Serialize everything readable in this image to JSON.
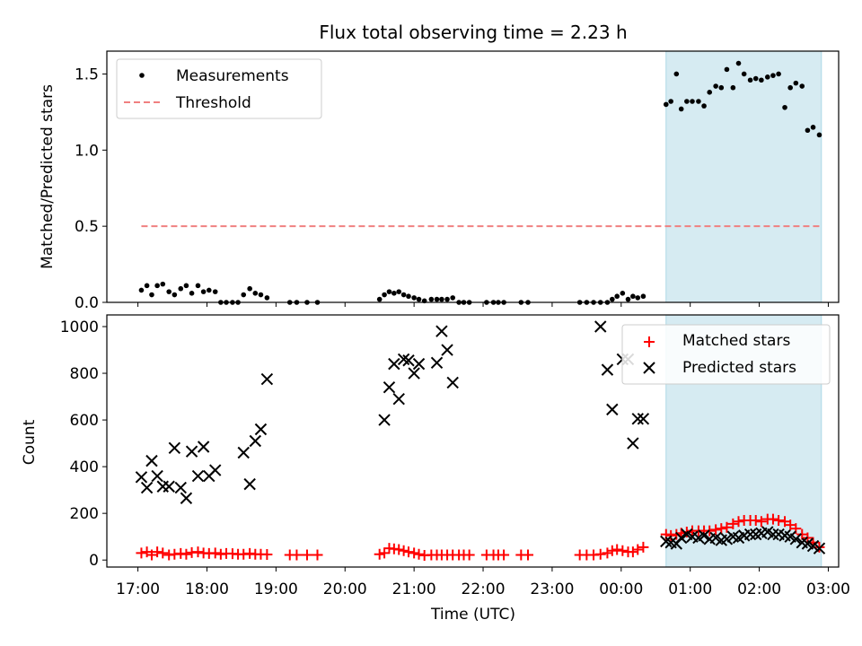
{
  "chart_data": [
    {
      "type": "scatter",
      "title": "Flux total observing time = 2.23 h",
      "xlabel": "",
      "ylabel": "Matched/Predicted stars",
      "ylim": [
        0,
        1.65
      ],
      "xlim": [
        16.55,
        27.15
      ],
      "yticks": [
        0.0,
        0.5,
        1.0,
        1.5
      ],
      "ytick_labels": [
        "0.0",
        "0.5",
        "1.0",
        "1.5"
      ],
      "legend": {
        "placement": "top-left",
        "entries": [
          "Measurements",
          "Threshold"
        ]
      },
      "threshold": {
        "name": "Threshold",
        "value": 0.5,
        "x_start": 17.05,
        "x_end": 26.9,
        "color": "#f08080"
      },
      "shaded_region": {
        "x_start": 24.65,
        "x_end": 26.9,
        "color": "#add8e6"
      },
      "series": [
        {
          "name": "Measurements",
          "color": "#000000",
          "x": [
            17.05,
            17.13,
            17.2,
            17.28,
            17.36,
            17.45,
            17.53,
            17.62,
            17.7,
            17.78,
            17.87,
            17.95,
            18.03,
            18.12,
            18.2,
            18.28,
            18.37,
            18.45,
            18.53,
            18.62,
            18.7,
            18.78,
            18.87,
            19.2,
            19.3,
            19.45,
            19.6,
            20.5,
            20.57,
            20.64,
            20.71,
            20.78,
            20.85,
            20.92,
            21.0,
            21.07,
            21.15,
            21.25,
            21.33,
            21.4,
            21.48,
            21.56,
            21.65,
            21.72,
            21.8,
            22.05,
            22.15,
            22.22,
            22.3,
            22.55,
            22.65,
            23.4,
            23.5,
            23.6,
            23.7,
            23.8,
            23.87,
            23.94,
            24.02,
            24.1,
            24.17,
            24.24,
            24.32,
            24.65,
            24.72,
            24.8,
            24.87,
            24.95,
            25.03,
            25.12,
            25.2,
            25.28,
            25.37,
            25.45,
            25.53,
            25.62,
            25.7,
            25.78,
            25.87,
            25.95,
            26.03,
            26.12,
            26.2,
            26.28,
            26.37,
            26.45,
            26.53,
            26.62,
            26.7,
            26.78,
            26.87
          ],
          "y": [
            0.08,
            0.11,
            0.05,
            0.11,
            0.12,
            0.07,
            0.05,
            0.09,
            0.11,
            0.06,
            0.11,
            0.07,
            0.08,
            0.07,
            0.0,
            0.0,
            0.0,
            0.0,
            0.05,
            0.09,
            0.06,
            0.05,
            0.03,
            0.0,
            0.0,
            0.0,
            0.0,
            0.02,
            0.05,
            0.07,
            0.06,
            0.07,
            0.05,
            0.04,
            0.03,
            0.02,
            0.01,
            0.02,
            0.02,
            0.02,
            0.02,
            0.03,
            0.0,
            0.0,
            0.0,
            0.0,
            0.0,
            0.0,
            0.0,
            0.0,
            0.0,
            0.0,
            0.0,
            0.0,
            0.0,
            0.0,
            0.02,
            0.04,
            0.06,
            0.02,
            0.04,
            0.03,
            0.04,
            1.3,
            1.32,
            1.5,
            1.27,
            1.32,
            1.32,
            1.32,
            1.29,
            1.38,
            1.42,
            1.41,
            1.53,
            1.41,
            1.57,
            1.5,
            1.46,
            1.47,
            1.46,
            1.48,
            1.49,
            1.5,
            1.28,
            1.41,
            1.44,
            1.42,
            1.13,
            1.15,
            1.1
          ]
        }
      ]
    },
    {
      "type": "scatter",
      "title": "",
      "xlabel": "Time (UTC)",
      "ylabel": "Count",
      "ylim": [
        -30,
        1050
      ],
      "xlim": [
        16.55,
        27.15
      ],
      "yticks": [
        0,
        200,
        400,
        600,
        800,
        1000
      ],
      "ytick_labels": [
        "0",
        "200",
        "400",
        "600",
        "800",
        "1000"
      ],
      "xticks": [
        17,
        18,
        19,
        20,
        21,
        22,
        23,
        24,
        25,
        26,
        27
      ],
      "xtick_labels": [
        "17:00",
        "18:00",
        "19:00",
        "20:00",
        "21:00",
        "22:00",
        "23:00",
        "00:00",
        "01:00",
        "02:00",
        "03:00"
      ],
      "legend": {
        "placement": "top-right",
        "entries": [
          "Matched stars",
          "Predicted stars"
        ]
      },
      "shaded_region": {
        "x_start": 24.65,
        "x_end": 26.9,
        "color": "#add8e6"
      },
      "series": [
        {
          "name": "Matched stars",
          "marker": "plus",
          "color": "#ff0000",
          "x": [
            17.05,
            17.13,
            17.2,
            17.28,
            17.36,
            17.45,
            17.53,
            17.62,
            17.7,
            17.78,
            17.87,
            17.95,
            18.03,
            18.12,
            18.2,
            18.28,
            18.37,
            18.45,
            18.53,
            18.62,
            18.7,
            18.78,
            18.87,
            19.2,
            19.3,
            19.45,
            19.6,
            20.5,
            20.57,
            20.64,
            20.71,
            20.78,
            20.85,
            20.92,
            21.0,
            21.07,
            21.15,
            21.25,
            21.33,
            21.4,
            21.48,
            21.56,
            21.65,
            21.72,
            21.8,
            22.05,
            22.15,
            22.22,
            22.3,
            22.55,
            22.65,
            23.4,
            23.5,
            23.6,
            23.7,
            23.8,
            23.87,
            23.94,
            24.02,
            24.1,
            24.17,
            24.24,
            24.32,
            24.65,
            24.72,
            24.8,
            24.87,
            24.95,
            25.03,
            25.12,
            25.2,
            25.28,
            25.37,
            25.45,
            25.53,
            25.62,
            25.7,
            25.78,
            25.87,
            25.95,
            26.03,
            26.12,
            26.2,
            26.28,
            26.37,
            26.45,
            26.53,
            26.62,
            26.7,
            26.78,
            26.87
          ],
          "y": [
            30,
            35,
            22,
            35,
            30,
            22,
            25,
            28,
            25,
            32,
            35,
            30,
            28,
            30,
            25,
            28,
            27,
            25,
            25,
            28,
            25,
            25,
            24,
            22,
            22,
            22,
            22,
            25,
            30,
            50,
            48,
            45,
            40,
            35,
            30,
            25,
            20,
            22,
            22,
            22,
            22,
            22,
            22,
            22,
            22,
            22,
            22,
            22,
            22,
            22,
            22,
            22,
            22,
            22,
            25,
            30,
            40,
            45,
            40,
            35,
            35,
            45,
            55,
            110,
            105,
            110,
            115,
            120,
            125,
            125,
            125,
            125,
            130,
            135,
            140,
            155,
            165,
            170,
            170,
            170,
            165,
            175,
            175,
            170,
            165,
            150,
            135,
            110,
            95,
            75,
            55
          ]
        },
        {
          "name": "Predicted stars",
          "marker": "x",
          "color": "#000000",
          "x": [
            17.05,
            17.13,
            17.2,
            17.28,
            17.36,
            17.45,
            17.53,
            17.62,
            17.7,
            17.78,
            17.87,
            17.95,
            18.03,
            18.12,
            18.53,
            18.62,
            18.7,
            18.78,
            18.87,
            20.57,
            20.64,
            20.71,
            20.78,
            20.85,
            20.92,
            21.0,
            21.07,
            21.33,
            21.4,
            21.48,
            21.56,
            23.7,
            23.8,
            23.87,
            24.02,
            24.1,
            24.17,
            24.24,
            24.32,
            24.65,
            24.72,
            24.8,
            24.87,
            24.95,
            25.03,
            25.12,
            25.2,
            25.28,
            25.37,
            25.45,
            25.53,
            25.62,
            25.7,
            25.78,
            25.87,
            25.95,
            26.03,
            26.12,
            26.2,
            26.28,
            26.37,
            26.45,
            26.53,
            26.62,
            26.7,
            26.78,
            26.87
          ],
          "y": [
            355,
            310,
            425,
            360,
            315,
            315,
            480,
            310,
            265,
            465,
            360,
            485,
            360,
            385,
            460,
            325,
            510,
            560,
            775,
            600,
            740,
            840,
            690,
            860,
            855,
            800,
            840,
            845,
            980,
            900,
            760,
            1000,
            815,
            645,
            860,
            860,
            500,
            605,
            605,
            80,
            75,
            70,
            95,
            110,
            100,
            95,
            105,
            90,
            95,
            85,
            90,
            100,
            95,
            105,
            110,
            110,
            115,
            120,
            110,
            110,
            105,
            100,
            90,
            75,
            70,
            60,
            50
          ]
        }
      ]
    }
  ]
}
